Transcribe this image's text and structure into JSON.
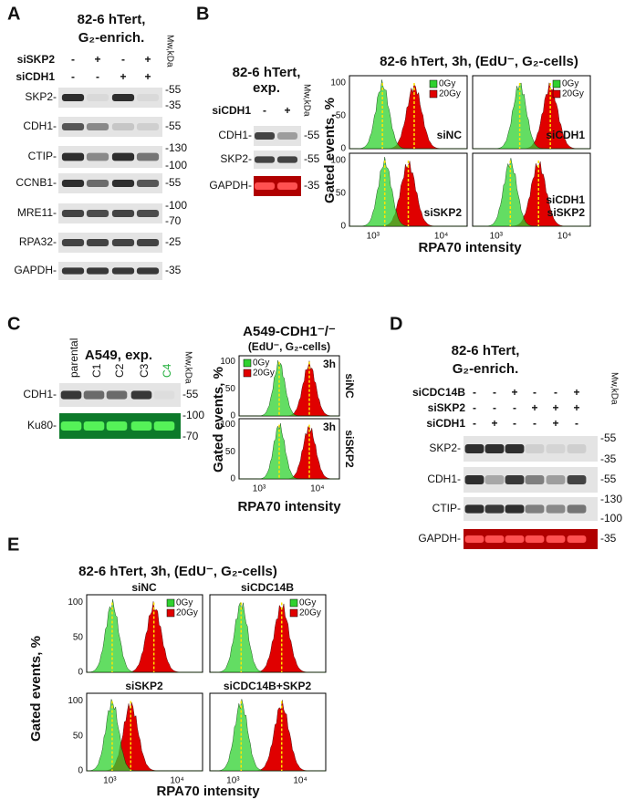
{
  "A": {
    "letter": "A",
    "title": [
      "82-6 hTert,",
      "G₂-enrich."
    ],
    "rows": [
      {
        "label": "siSKP2",
        "signs": [
          "-",
          "+",
          "-",
          "+"
        ]
      },
      {
        "label": "siCDH1",
        "signs": [
          "-",
          "-",
          "+",
          "+"
        ]
      }
    ],
    "mw_header": "Mw,kDa",
    "blots": [
      {
        "label": "SKP2-",
        "mw": [
          "-55",
          "-35"
        ]
      },
      {
        "label": "CDH1-",
        "mw": [
          "-55"
        ]
      },
      {
        "label": "CTIP-",
        "mw": [
          "-130",
          "-100"
        ]
      },
      {
        "label": "CCNB1-",
        "mw": [
          "-55"
        ]
      },
      {
        "label": "MRE11-",
        "mw": [
          "-100",
          "-70"
        ]
      },
      {
        "label": "RPA32-",
        "mw": [
          "-25"
        ]
      },
      {
        "label": "GAPDH-",
        "mw": [
          "-35"
        ]
      }
    ]
  },
  "B": {
    "letter": "B",
    "blot": {
      "title": [
        "82-6 hTert,",
        "exp."
      ],
      "row": {
        "label": "siCDH1",
        "signs": [
          "-",
          "+"
        ]
      },
      "mw_header": "Mw,kDa",
      "blots": [
        {
          "label": "CDH1-",
          "mw": [
            "-55"
          ]
        },
        {
          "label": "SKP2-",
          "mw": [
            "-55"
          ]
        },
        {
          "label": "GAPDH-",
          "mw": [
            "-35"
          ]
        }
      ]
    },
    "flow": {
      "title": "82-6 hTert, 3h, (EdU⁻, G₂-cells)",
      "y_label": "Gated events, %",
      "x_label": "RPA70 intensity",
      "yticks": [
        "0",
        "50",
        "100"
      ],
      "xticks": [
        "10³",
        "10⁴"
      ],
      "legend": [
        "0Gy",
        "20Gy"
      ],
      "plots": [
        [
          "siNC"
        ],
        [
          "siCDH1"
        ],
        [
          "siSKP2"
        ],
        [
          "siCDH1",
          "siSKP2"
        ]
      ]
    }
  },
  "C": {
    "letter": "C",
    "blot": {
      "title": "A549, exp.",
      "lanes": [
        "parental",
        "C1",
        "C2",
        "C3",
        "C4"
      ],
      "mw_header": "Mw,kDa",
      "blots": [
        {
          "label": "CDH1-",
          "mw": [
            "-55"
          ]
        },
        {
          "label": "Ku80-",
          "mw": [
            "-100",
            "-70"
          ]
        }
      ]
    },
    "flow": {
      "title": [
        "A549-CDH1⁻/⁻",
        "(EdU⁻, G₂-cells)"
      ],
      "y_label": "Gated events, %",
      "x_label": "RPA70 intensity",
      "yticks": [
        "0",
        "50",
        "100"
      ],
      "xticks": [
        "10³",
        "10⁴"
      ],
      "legend": [
        "0Gy",
        "20Gy"
      ],
      "plots": [
        {
          "time": "3h",
          "label": "siNC"
        },
        {
          "time": "3h",
          "label": "siSKP2"
        }
      ]
    }
  },
  "D": {
    "letter": "D",
    "title": [
      "82-6 hTert,",
      "G₂-enrich."
    ],
    "rows": [
      {
        "label": "siCDC14B",
        "signs": [
          "-",
          "-",
          "+",
          "-",
          "-",
          "+"
        ]
      },
      {
        "label": "siSKP2",
        "signs": [
          "-",
          "-",
          "-",
          "+",
          "+",
          "+"
        ]
      },
      {
        "label": "siCDH1",
        "signs": [
          "-",
          "+",
          "-",
          "-",
          "+",
          "-"
        ]
      }
    ],
    "mw_header": "Mw,kDa",
    "blots": [
      {
        "label": "SKP2-",
        "mw": [
          "-55",
          "-35"
        ]
      },
      {
        "label": "CDH1-",
        "mw": [
          "-55"
        ]
      },
      {
        "label": "CTIP-",
        "mw": [
          "-130",
          "-100"
        ]
      },
      {
        "label": "GAPDH-",
        "mw": [
          "-35"
        ]
      }
    ]
  },
  "E": {
    "letter": "E",
    "title": "82-6 hTert, 3h, (EdU⁻, G₂-cells)",
    "y_label": "Gated events, %",
    "x_label": "RPA70 intensity",
    "yticks": [
      "0",
      "50",
      "100"
    ],
    "xticks": [
      "10³",
      "10⁴"
    ],
    "legend": [
      "0Gy",
      "20Gy"
    ],
    "plots": [
      "siNC",
      "siCDC14B",
      "siSKP2",
      "siCDC14B+SKP2"
    ]
  }
}
